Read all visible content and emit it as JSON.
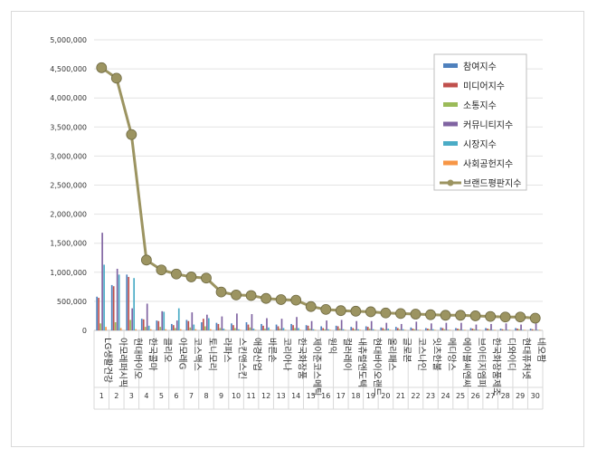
{
  "chart_data": {
    "type": "bar",
    "categories": [
      "LG생활건강",
      "아모레퍼시픽",
      "현대바이오",
      "한국콜마",
      "클리오",
      "아모레G",
      "코스맥스",
      "토니모리",
      "라파스",
      "스킨앤스킨",
      "애경산업",
      "바른손",
      "코리아나",
      "한국화장품",
      "제이준코스메틱",
      "원익",
      "컬러레이",
      "내츄럴엔도텍",
      "현대바이오랜드",
      "올리패스",
      "글로본",
      "코스나인",
      "잇츠한불",
      "메디앙스",
      "에이블씨엔씨",
      "브이티지엠피",
      "한국화장품제조",
      "디와이디",
      "현대퓨처넷",
      "네오팜"
    ],
    "ranks": [
      "1",
      "2",
      "3",
      "4",
      "5",
      "6",
      "7",
      "8",
      "9",
      "10",
      "11",
      "12",
      "13",
      "14",
      "15",
      "16",
      "17",
      "18",
      "19",
      "20",
      "21",
      "22",
      "23",
      "24",
      "25",
      "26",
      "27",
      "28",
      "29",
      "30"
    ],
    "series": [
      {
        "name": "참여지수",
        "color": "#4f81bd",
        "kind": "bar",
        "values": [
          580000,
          780000,
          960000,
          200000,
          170000,
          110000,
          180000,
          140000,
          130000,
          120000,
          140000,
          110000,
          100000,
          110000,
          90000,
          70000,
          80000,
          60000,
          70000,
          50000,
          60000,
          50000,
          40000,
          50000,
          40000,
          40000,
          40000,
          30000,
          40000,
          30000
        ]
      },
      {
        "name": "미디어지수",
        "color": "#c0504d",
        "kind": "bar",
        "values": [
          560000,
          760000,
          920000,
          190000,
          160000,
          90000,
          160000,
          200000,
          110000,
          90000,
          100000,
          80000,
          70000,
          90000,
          80000,
          40000,
          70000,
          40000,
          60000,
          40000,
          40000,
          30000,
          30000,
          40000,
          30000,
          30000,
          30000,
          20000,
          30000,
          20000
        ]
      },
      {
        "name": "소통지수",
        "color": "#9bbb59",
        "kind": "bar",
        "values": [
          120000,
          140000,
          180000,
          60000,
          60000,
          40000,
          50000,
          70000,
          40000,
          40000,
          50000,
          30000,
          30000,
          40000,
          30000,
          20000,
          30000,
          20000,
          30000,
          20000,
          20000,
          20000,
          20000,
          20000,
          20000,
          20000,
          20000,
          10000,
          20000,
          10000
        ]
      },
      {
        "name": "커뮤니티지수",
        "color": "#8064a2",
        "kind": "bar",
        "values": [
          1680000,
          1060000,
          380000,
          460000,
          330000,
          170000,
          310000,
          270000,
          240000,
          290000,
          280000,
          210000,
          200000,
          230000,
          160000,
          170000,
          180000,
          160000,
          160000,
          130000,
          110000,
          150000,
          120000,
          130000,
          130000,
          100000,
          110000,
          120000,
          100000,
          120000
        ]
      },
      {
        "name": "시장지수",
        "color": "#4bacc6",
        "kind": "bar",
        "values": [
          1130000,
          960000,
          900000,
          80000,
          320000,
          380000,
          100000,
          210000,
          30000,
          20000,
          30000,
          50000,
          40000,
          40000,
          20000,
          20000,
          20000,
          20000,
          20000,
          30000,
          20000,
          10000,
          20000,
          10000,
          10000,
          10000,
          10000,
          10000,
          10000,
          10000
        ]
      },
      {
        "name": "사회공헌지수",
        "color": "#f79646",
        "kind": "bar",
        "values": [
          60000,
          40000,
          20000,
          20000,
          20000,
          20000,
          20000,
          20000,
          10000,
          10000,
          10000,
          10000,
          10000,
          10000,
          10000,
          10000,
          10000,
          10000,
          10000,
          10000,
          10000,
          10000,
          10000,
          10000,
          10000,
          10000,
          10000,
          10000,
          10000,
          10000
        ]
      },
      {
        "name": "브랜드평판지수",
        "color": "#9c9461",
        "kind": "line",
        "values": [
          4520000,
          4340000,
          3370000,
          1210000,
          1040000,
          970000,
          920000,
          900000,
          660000,
          610000,
          600000,
          550000,
          530000,
          520000,
          410000,
          360000,
          340000,
          330000,
          320000,
          300000,
          290000,
          280000,
          270000,
          260000,
          260000,
          250000,
          240000,
          230000,
          230000,
          210000
        ]
      }
    ],
    "y_ticks": [
      "0",
      "500,000",
      "1,000,000",
      "1,500,000",
      "2,000,000",
      "2,500,000",
      "3,000,000",
      "3,500,000",
      "4,000,000",
      "4,500,000",
      "5,000,000"
    ],
    "ylim": [
      0,
      5000000
    ],
    "grid": true,
    "legend_position": "top-right"
  }
}
